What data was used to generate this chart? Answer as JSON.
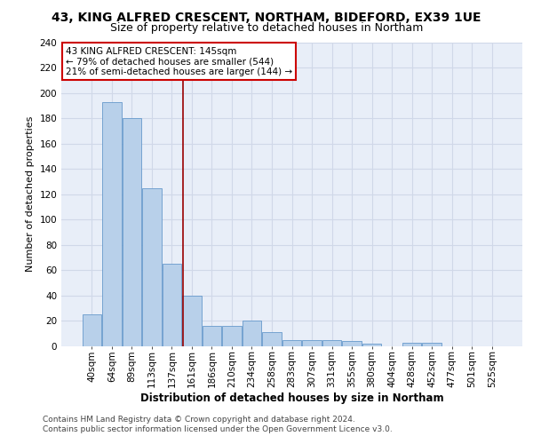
{
  "title1": "43, KING ALFRED CRESCENT, NORTHAM, BIDEFORD, EX39 1UE",
  "title2": "Size of property relative to detached houses in Northam",
  "xlabel": "Distribution of detached houses by size in Northam",
  "ylabel": "Number of detached properties",
  "categories": [
    "40sqm",
    "64sqm",
    "89sqm",
    "113sqm",
    "137sqm",
    "161sqm",
    "186sqm",
    "210sqm",
    "234sqm",
    "258sqm",
    "283sqm",
    "307sqm",
    "331sqm",
    "355sqm",
    "380sqm",
    "404sqm",
    "428sqm",
    "452sqm",
    "477sqm",
    "501sqm",
    "525sqm"
  ],
  "values": [
    25,
    193,
    180,
    125,
    65,
    40,
    16,
    16,
    20,
    11,
    5,
    5,
    5,
    4,
    2,
    0,
    3,
    3,
    0,
    0,
    0
  ],
  "bar_color": "#b8d0ea",
  "bar_edge_color": "#6699cc",
  "vline_x_index": 4.55,
  "vline_color": "#990000",
  "annotation_text": "43 KING ALFRED CRESCENT: 145sqm\n← 79% of detached houses are smaller (544)\n21% of semi-detached houses are larger (144) →",
  "annotation_box_color": "#ffffff",
  "annotation_box_edge": "#cc0000",
  "footer": "Contains HM Land Registry data © Crown copyright and database right 2024.\nContains public sector information licensed under the Open Government Licence v3.0.",
  "ylim": [
    0,
    240
  ],
  "yticks": [
    0,
    20,
    40,
    60,
    80,
    100,
    120,
    140,
    160,
    180,
    200,
    220,
    240
  ],
  "bg_color": "#e8eef8",
  "grid_color": "#d0d8e8",
  "title1_fontsize": 10,
  "title2_fontsize": 9,
  "xlabel_fontsize": 8.5,
  "ylabel_fontsize": 8,
  "tick_fontsize": 7.5,
  "footer_fontsize": 6.5,
  "annot_fontsize": 7.5
}
